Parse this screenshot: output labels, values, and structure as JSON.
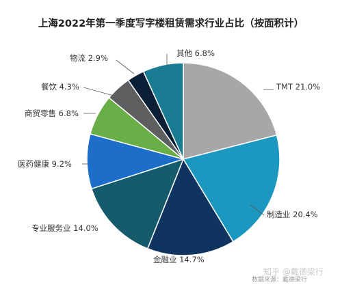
{
  "chart_data": {
    "type": "pie",
    "title": "上海2022年第一季度写字楼租赁需求行业占比（按面积计）",
    "slices": [
      {
        "name": "TMT",
        "value": 21.0,
        "label": "TMT 21.0%",
        "color": "#a7a6a9"
      },
      {
        "name": "制造业",
        "value": 20.4,
        "label": "制造业 20.4%",
        "color": "#1b97c0"
      },
      {
        "name": "金融业",
        "value": 14.7,
        "label": "金融业 14.7%",
        "color": "#0f3460"
      },
      {
        "name": "专业服务业",
        "value": 14.0,
        "label": "专业服务业 14.0%",
        "color": "#165b6c"
      },
      {
        "name": "医药健康",
        "value": 9.2,
        "label": "医药健康 9.2%",
        "color": "#1d6ec9"
      },
      {
        "name": "商贸零售",
        "value": 6.8,
        "label": "商贸零售 6.8%",
        "color": "#6aae48"
      },
      {
        "name": "餐饮",
        "value": 4.3,
        "label": "餐饮 4.3%",
        "color": "#5d5e60"
      },
      {
        "name": "物流",
        "value": 2.9,
        "label": "物流 2.9%",
        "color": "#0b1f36"
      },
      {
        "name": "其他",
        "value": 6.8,
        "label": "其他 6.8%",
        "color": "#1a7c93"
      }
    ],
    "legend": "none"
  },
  "watermark": "知乎 @戴德梁行",
  "source_note": "数据来源：戴德梁行"
}
